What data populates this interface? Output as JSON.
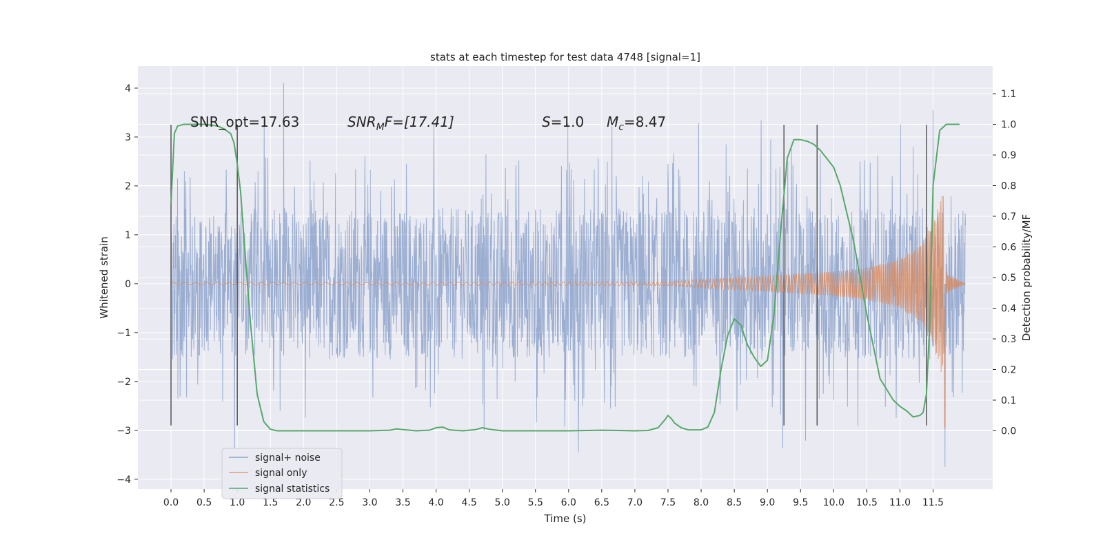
{
  "chart_data": {
    "type": "line",
    "title": "stats at each timestep for test data 4748 [signal=1]",
    "xlabel": "Time (s)",
    "ylabel": "Whitened strain",
    "y2label": "Detection probability/MF",
    "xlim": [
      -0.5,
      12.4
    ],
    "ylim": [
      -4.2,
      4.45
    ],
    "y2lim": [
      -0.19,
      1.19
    ],
    "x_ticks": [
      0.0,
      0.5,
      1.0,
      1.5,
      2.0,
      2.5,
      3.0,
      3.5,
      4.0,
      4.5,
      5.0,
      5.5,
      6.0,
      6.5,
      7.0,
      7.5,
      8.0,
      8.5,
      9.0,
      9.5,
      10.0,
      10.5,
      11.0,
      11.5
    ],
    "x_tick_labels": [
      "0.0",
      "0.5",
      "1.0",
      "1.5",
      "2.0",
      "2.5",
      "3.0",
      "3.5",
      "4.0",
      "4.5",
      "5.0",
      "5.5",
      "6.0",
      "6.5",
      "7.0",
      "7.5",
      "8.0",
      "8.5",
      "9.0",
      "9.5",
      "10.0",
      "10.5",
      "11.0",
      "11.5"
    ],
    "y_ticks": [
      -4,
      -3,
      -2,
      -1,
      0,
      1,
      2,
      3,
      4
    ],
    "y_tick_labels": [
      "−4",
      "−3",
      "−2",
      "−1",
      "0",
      "1",
      "2",
      "3",
      "4"
    ],
    "y2_ticks": [
      0.0,
      0.1,
      0.2,
      0.3,
      0.4,
      0.5,
      0.6,
      0.7,
      0.8,
      0.9,
      1.0,
      1.1
    ],
    "y2_tick_labels": [
      "0.0",
      "0.1",
      "0.2",
      "0.3",
      "0.4",
      "0.5",
      "0.6",
      "0.7",
      "0.8",
      "0.9",
      "1.0",
      "1.1"
    ],
    "grid": true,
    "legend_position": "bottom-left",
    "annotations": {
      "snr_opt": "SNR_opt=17.63",
      "snr_mf_sym": "SNR",
      "snr_mf_sub": "M",
      "snr_mf_rest": "F=[17.41]",
      "s_sym": "S",
      "s_rest": "=1.0",
      "mc_sym": "M",
      "mc_sub": "c",
      "mc_rest": "=8.47"
    },
    "series": [
      {
        "name": "signal+ noise",
        "color": "#4c72b0",
        "axis": "left",
        "style": "dense noise",
        "x_range": [
          0.0,
          11.99
        ],
        "amplitude_band": [
          -1.9,
          1.9
        ],
        "peak_max": 4.1,
        "peak_min": -3.75
      },
      {
        "name": "signal only",
        "color": "#dd8452",
        "axis": "left",
        "style": "chirp",
        "x_range": [
          0.0,
          11.99
        ],
        "envelope": [
          {
            "x": 0.0,
            "amp": 0.02
          },
          {
            "x": 7.5,
            "amp": 0.04
          },
          {
            "x": 8.0,
            "amp": 0.09
          },
          {
            "x": 9.0,
            "amp": 0.16
          },
          {
            "x": 10.0,
            "amp": 0.25
          },
          {
            "x": 10.5,
            "amp": 0.33
          },
          {
            "x": 11.0,
            "amp": 0.5
          },
          {
            "x": 11.3,
            "amp": 0.8
          },
          {
            "x": 11.5,
            "amp": 1.25
          },
          {
            "x": 11.6,
            "amp": 1.65
          },
          {
            "x": 11.65,
            "amp": 2.0
          },
          {
            "x": 11.7,
            "amp": 0.2
          },
          {
            "x": 11.99,
            "amp": 0.0
          }
        ],
        "chirp_min": -2.95
      },
      {
        "name": "signal statistics",
        "color": "#55a868",
        "axis": "right",
        "x": [
          0.0,
          0.05,
          0.1,
          0.2,
          0.3,
          0.5,
          0.7,
          0.8,
          0.9,
          0.95,
          1.0,
          1.05,
          1.1,
          1.2,
          1.3,
          1.4,
          1.5,
          1.6,
          1.8,
          2.5,
          3.0,
          3.3,
          3.4,
          3.5,
          3.7,
          3.9,
          4.0,
          4.1,
          4.2,
          4.4,
          4.6,
          4.7,
          4.8,
          5.0,
          6.0,
          6.5,
          7.0,
          7.2,
          7.35,
          7.45,
          7.5,
          7.55,
          7.6,
          7.7,
          7.8,
          8.0,
          8.1,
          8.2,
          8.3,
          8.4,
          8.5,
          8.6,
          8.7,
          8.8,
          8.9,
          9.0,
          9.1,
          9.2,
          9.3,
          9.4,
          9.5,
          9.6,
          9.7,
          9.8,
          10.0,
          10.1,
          10.3,
          10.5,
          10.7,
          10.9,
          11.0,
          11.1,
          11.2,
          11.3,
          11.35,
          11.4,
          11.45,
          11.5,
          11.6,
          11.7,
          11.8,
          11.9
        ],
        "values": [
          0.74,
          0.97,
          0.995,
          1.0,
          1.0,
          1.0,
          0.995,
          0.985,
          0.97,
          0.94,
          0.87,
          0.78,
          0.63,
          0.35,
          0.12,
          0.03,
          0.005,
          0.0,
          0.0,
          0.0,
          0.0,
          0.002,
          0.006,
          0.004,
          0.0,
          0.002,
          0.01,
          0.012,
          0.003,
          0.0,
          0.004,
          0.01,
          0.005,
          0.0,
          0.0,
          0.002,
          0.0,
          0.001,
          0.01,
          0.035,
          0.05,
          0.04,
          0.025,
          0.01,
          0.003,
          0.003,
          0.012,
          0.06,
          0.2,
          0.31,
          0.365,
          0.345,
          0.28,
          0.24,
          0.21,
          0.23,
          0.38,
          0.65,
          0.89,
          0.95,
          0.95,
          0.945,
          0.935,
          0.915,
          0.86,
          0.8,
          0.62,
          0.38,
          0.17,
          0.1,
          0.08,
          0.065,
          0.045,
          0.05,
          0.06,
          0.12,
          0.35,
          0.8,
          0.98,
          1.0,
          1.0,
          1.0
        ]
      }
    ],
    "vertical_lines": [
      {
        "x": 0.0,
        "y_range": [
          -2.9,
          3.25
        ]
      },
      {
        "x": 1.0,
        "y_range": [
          -2.9,
          3.25
        ]
      },
      {
        "x": 9.25,
        "y_range": [
          -2.9,
          3.25
        ]
      },
      {
        "x": 9.75,
        "y_range": [
          -2.9,
          3.25
        ]
      },
      {
        "x": 11.4,
        "y_range": [
          -2.9,
          3.25
        ]
      }
    ],
    "colors": {
      "axes_bg": "#eaeaf2",
      "grid": "#ffffff",
      "vline": "#555555"
    }
  }
}
